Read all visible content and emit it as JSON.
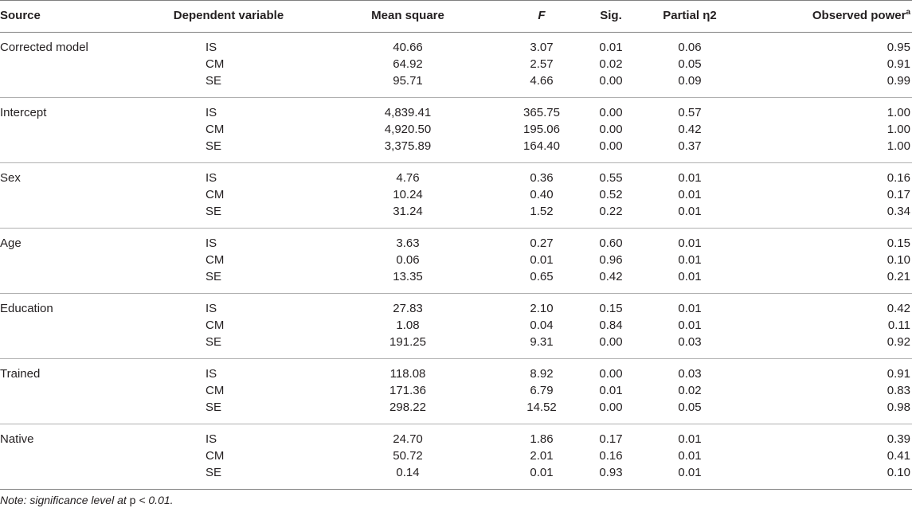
{
  "table": {
    "headers": [
      "Source",
      "Dependent variable",
      "Mean square",
      "F",
      "Sig.",
      "Partial η2",
      "Observed power"
    ],
    "header_superscript": "a",
    "groups": [
      {
        "source": "Corrected model",
        "rows": [
          [
            "IS",
            "40.66",
            "3.07",
            "0.01",
            "0.06",
            "0.95"
          ],
          [
            "CM",
            "64.92",
            "2.57",
            "0.02",
            "0.05",
            "0.91"
          ],
          [
            "SE",
            "95.71",
            "4.66",
            "0.00",
            "0.09",
            "0.99"
          ]
        ]
      },
      {
        "source": "Intercept",
        "rows": [
          [
            "IS",
            "4,839.41",
            "365.75",
            "0.00",
            "0.57",
            "1.00"
          ],
          [
            "CM",
            "4,920.50",
            "195.06",
            "0.00",
            "0.42",
            "1.00"
          ],
          [
            "SE",
            "3,375.89",
            "164.40",
            "0.00",
            "0.37",
            "1.00"
          ]
        ]
      },
      {
        "source": "Sex",
        "rows": [
          [
            "IS",
            "4.76",
            "0.36",
            "0.55",
            "0.01",
            "0.16"
          ],
          [
            "CM",
            "10.24",
            "0.40",
            "0.52",
            "0.01",
            "0.17"
          ],
          [
            "SE",
            "31.24",
            "1.52",
            "0.22",
            "0.01",
            "0.34"
          ]
        ]
      },
      {
        "source": "Age",
        "rows": [
          [
            "IS",
            "3.63",
            "0.27",
            "0.60",
            "0.01",
            "0.15"
          ],
          [
            "CM",
            "0.06",
            "0.01",
            "0.96",
            "0.01",
            "0.10"
          ],
          [
            "SE",
            "13.35",
            "0.65",
            "0.42",
            "0.01",
            "0.21"
          ]
        ]
      },
      {
        "source": "Education",
        "rows": [
          [
            "IS",
            "27.83",
            "2.10",
            "0.15",
            "0.01",
            "0.42"
          ],
          [
            "CM",
            "1.08",
            "0.04",
            "0.84",
            "0.01",
            "0.11"
          ],
          [
            "SE",
            "191.25",
            "9.31",
            "0.00",
            "0.03",
            "0.92"
          ]
        ]
      },
      {
        "source": "Trained",
        "rows": [
          [
            "IS",
            "118.08",
            "8.92",
            "0.00",
            "0.03",
            "0.91"
          ],
          [
            "CM",
            "171.36",
            "6.79",
            "0.01",
            "0.02",
            "0.83"
          ],
          [
            "SE",
            "298.22",
            "14.52",
            "0.00",
            "0.05",
            "0.98"
          ]
        ]
      },
      {
        "source": "Native",
        "rows": [
          [
            "IS",
            "24.70",
            "1.86",
            "0.17",
            "0.01",
            "0.39"
          ],
          [
            "CM",
            "50.72",
            "2.01",
            "0.16",
            "0.01",
            "0.41"
          ],
          [
            "SE",
            "0.14",
            "0.01",
            "0.93",
            "0.01",
            "0.10"
          ]
        ]
      }
    ]
  },
  "note": {
    "prefix": "Note: significance level at ",
    "variable": "p",
    "suffix": " < 0.01."
  }
}
